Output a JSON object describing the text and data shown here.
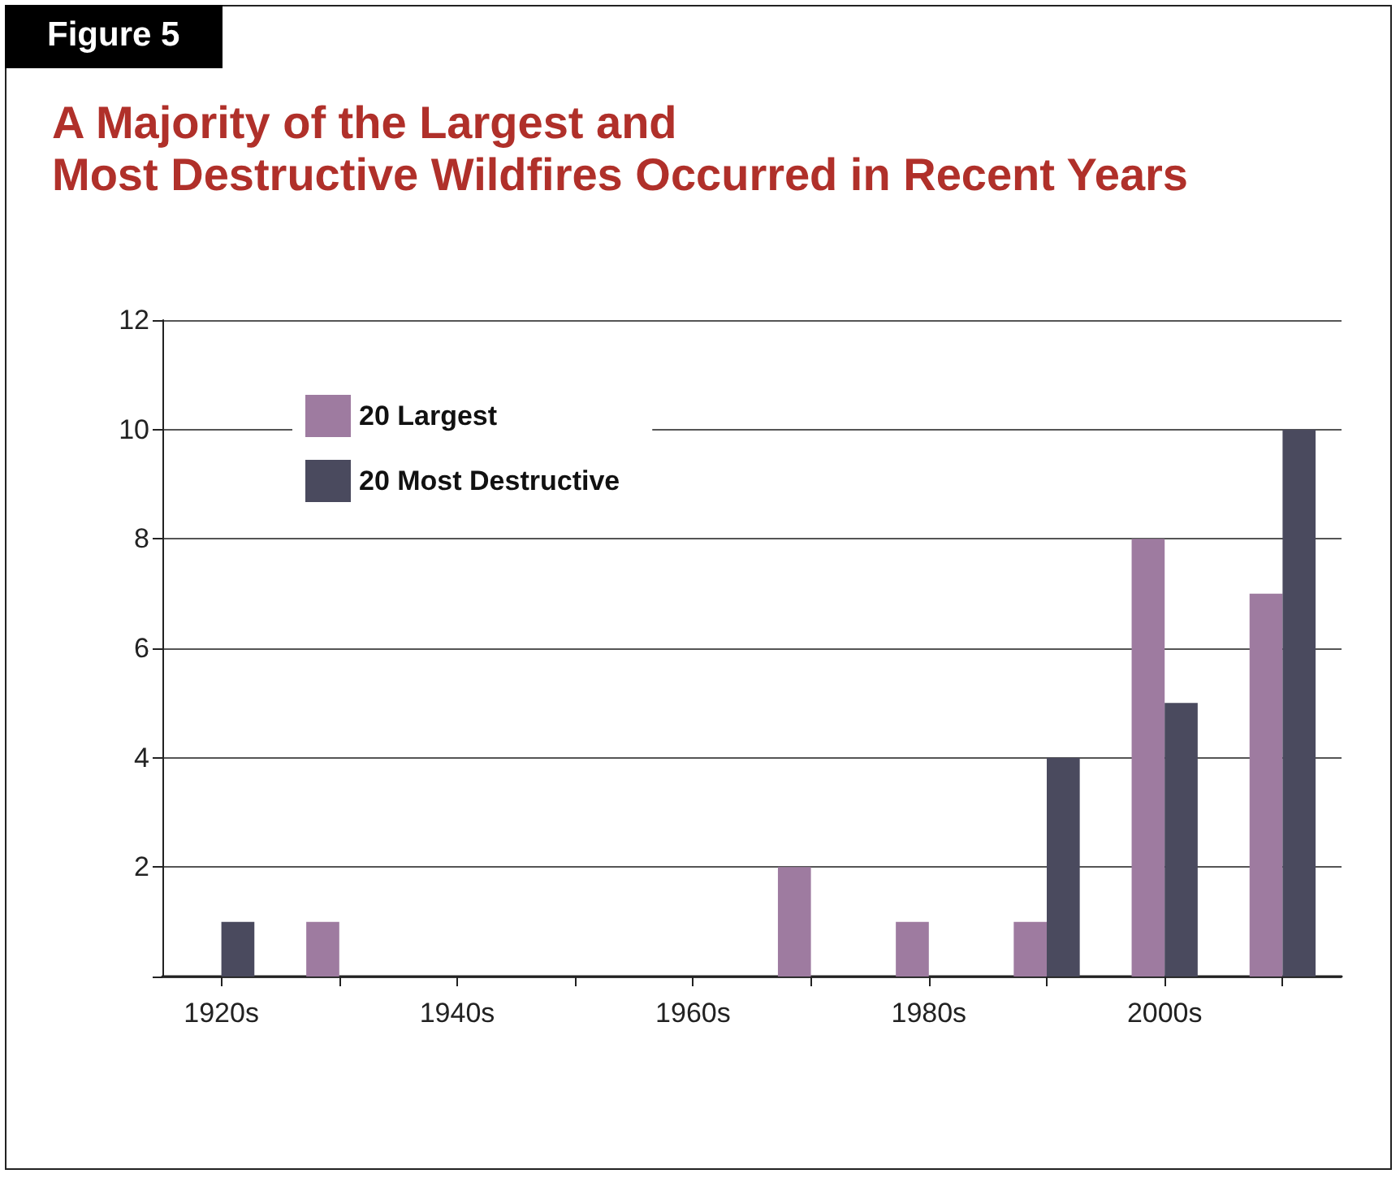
{
  "chart_data": {
    "type": "bar",
    "title": "A Majority of the Largest and\nMost Destructive Wildfires Occurred in Recent Years",
    "annotations": [
      "Figure 5"
    ],
    "categories": [
      "1920s",
      null,
      "1940s",
      null,
      "1960s",
      null,
      "1980s",
      null,
      "2000s",
      null
    ],
    "series": [
      {
        "name": "20 Largest",
        "color": "#9e7ba0",
        "values": [
          0,
          1,
          0,
          0,
          0,
          2,
          1,
          1,
          8,
          7
        ]
      },
      {
        "name": "20 Most Destructive",
        "color": "#4a4a5e",
        "values": [
          1,
          0,
          0,
          0,
          0,
          0,
          0,
          4,
          5,
          10
        ]
      }
    ],
    "ylim": [
      0,
      12
    ],
    "yticks": [
      {
        "value": 0,
        "label": null
      },
      2,
      4,
      6,
      8,
      10,
      12
    ],
    "grid": "y",
    "legend": "top left"
  }
}
